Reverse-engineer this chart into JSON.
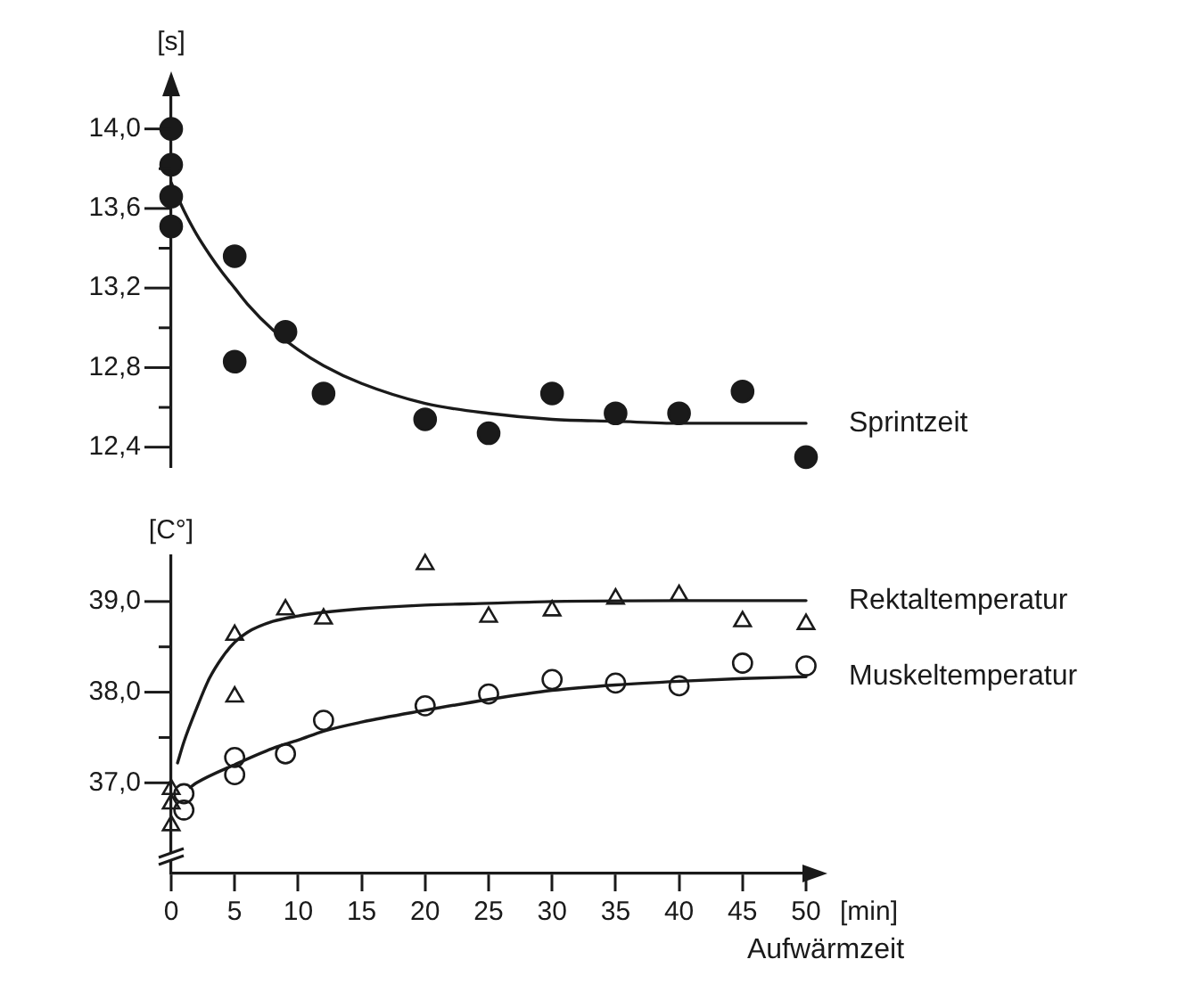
{
  "chart_data": [
    {
      "type": "scatter",
      "ylabel": "[s]",
      "xlim": [
        0,
        50
      ],
      "ylim": [
        12.3,
        14.2
      ],
      "yticks": [
        {
          "value": 12.4,
          "label": "12,4"
        },
        {
          "value": 12.6,
          "label": null
        },
        {
          "value": 12.8,
          "label": "12,8"
        },
        {
          "value": 13.0,
          "label": null
        },
        {
          "value": 13.2,
          "label": "13,2"
        },
        {
          "value": 13.4,
          "label": null
        },
        {
          "value": 13.6,
          "label": "13,6"
        },
        {
          "value": 13.8,
          "label": null
        },
        {
          "value": 14.0,
          "label": "14,0"
        }
      ],
      "tick_labels": "y",
      "series": [
        {
          "type": "scatter",
          "color": "#1a1a1a",
          "marker": "circle",
          "x": [
            0,
            0,
            0,
            0,
            5,
            5,
            9,
            12,
            20,
            25,
            30,
            35,
            40,
            45,
            50
          ],
          "values": [
            14.0,
            13.82,
            13.66,
            13.51,
            13.36,
            12.83,
            12.98,
            12.67,
            12.54,
            12.47,
            12.67,
            12.57,
            12.57,
            12.68,
            12.35
          ]
        },
        {
          "type": "line",
          "name": "Sprintzeit",
          "color": "#1a1a1a",
          "marker": "none",
          "line_style": "solid",
          "x": [
            0,
            1,
            2,
            3,
            4,
            5,
            6,
            8,
            10,
            12,
            15,
            20,
            25,
            30,
            35,
            40,
            45,
            50
          ],
          "values": [
            13.73,
            13.59,
            13.47,
            13.37,
            13.28,
            13.2,
            13.12,
            12.99,
            12.89,
            12.81,
            12.72,
            12.62,
            12.57,
            12.54,
            12.53,
            12.52,
            12.52,
            12.52
          ]
        }
      ]
    },
    {
      "type": "scatter",
      "ylabel": "[C°]",
      "xlabel": "Aufwärmzeit",
      "annotations": [
        "[min]"
      ],
      "xlim": [
        0,
        50
      ],
      "xticks": [
        0,
        5,
        10,
        15,
        20,
        25,
        30,
        35,
        40,
        45,
        50
      ],
      "ylim": [
        36.0,
        39.5
      ],
      "yticks": [
        {
          "value": 37.0,
          "label": "37,0"
        },
        {
          "value": 37.5,
          "label": null
        },
        {
          "value": 38.0,
          "label": "38,0"
        },
        {
          "value": 38.5,
          "label": null
        },
        {
          "value": 39.0,
          "label": "39,0"
        }
      ],
      "series": [
        {
          "type": "scatter",
          "color": "#1a1a1a",
          "marker": "triangle",
          "x": [
            0,
            0,
            0,
            5,
            5,
            9,
            12,
            20,
            25,
            30,
            35,
            40,
            45,
            50
          ],
          "values": [
            36.93,
            36.77,
            36.53,
            38.63,
            37.95,
            38.91,
            38.81,
            39.41,
            38.83,
            38.9,
            39.03,
            39.07,
            38.78,
            38.75
          ]
        },
        {
          "type": "line",
          "name": "Rektaltemperatur",
          "color": "#1a1a1a",
          "marker": "none",
          "line_style": "solid",
          "x": [
            0.5,
            1,
            2,
            3,
            4,
            5,
            6,
            8,
            10,
            12,
            15,
            20,
            25,
            30,
            40,
            50
          ],
          "values": [
            37.22,
            37.45,
            37.82,
            38.15,
            38.38,
            38.55,
            38.66,
            38.78,
            38.84,
            38.88,
            38.92,
            38.96,
            38.98,
            39.0,
            39.01,
            39.01
          ]
        },
        {
          "type": "scatter",
          "color": "#1a1a1a",
          "marker": "circle",
          "x": [
            1,
            1,
            5,
            5,
            9,
            12,
            20,
            25,
            30,
            35,
            40,
            45,
            50
          ],
          "values": [
            36.88,
            36.7,
            37.28,
            37.09,
            37.32,
            37.69,
            37.85,
            37.98,
            38.14,
            38.1,
            38.07,
            38.32,
            38.29
          ]
        },
        {
          "type": "line",
          "name": "Muskeltemperatur",
          "color": "#1a1a1a",
          "marker": "none",
          "line_style": "solid",
          "x": [
            1.5,
            2,
            5,
            8,
            10,
            12,
            15,
            20,
            25,
            30,
            35,
            40,
            45,
            50
          ],
          "values": [
            36.95,
            37.0,
            37.2,
            37.38,
            37.47,
            37.57,
            37.67,
            37.8,
            37.92,
            38.02,
            38.08,
            38.12,
            38.15,
            38.17
          ]
        }
      ]
    }
  ]
}
